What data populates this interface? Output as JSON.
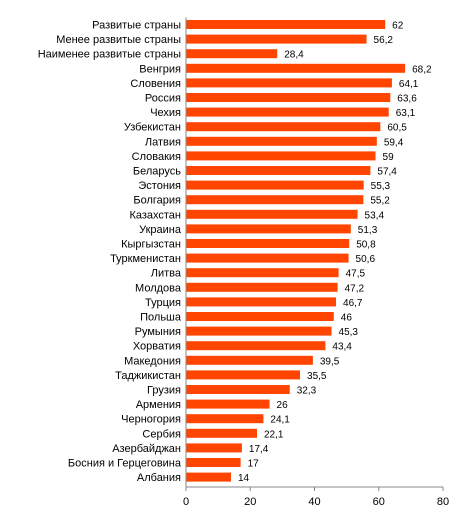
{
  "chart_data": {
    "type": "bar",
    "orientation": "horizontal",
    "categories": [
      "Развитые страны",
      "Менее развитые страны",
      "Наименее развитые страны",
      "Венгрия",
      "Словения",
      "Россия",
      "Чехия",
      "Узбекистан",
      "Латвия",
      "Словакия",
      "Беларусь",
      "Эстония",
      "Болгария",
      "Казахстан",
      "Украина",
      "Кыргызстан",
      "Туркменистан",
      "Литва",
      "Молдова",
      "Турция",
      "Польша",
      "Румыния",
      "Хорватия",
      "Македония",
      "Таджикистан",
      "Грузия",
      "Армения",
      "Черногория",
      "Сербия",
      "Азербайджан",
      "Босния и Герцеговина",
      "Албания"
    ],
    "values": [
      62,
      56.2,
      28.4,
      68.2,
      64.1,
      63.6,
      63.1,
      60.5,
      59.4,
      59,
      57.4,
      55.3,
      55.2,
      53.4,
      51.3,
      50.8,
      50.6,
      47.5,
      47.2,
      46.7,
      46,
      45.3,
      43.4,
      39.5,
      35.5,
      32.3,
      26,
      24.1,
      22.1,
      17.4,
      17,
      14
    ],
    "value_labels": [
      "62",
      "56,2",
      "28,4",
      "68,2",
      "64,1",
      "63,6",
      "63,1",
      "60,5",
      "59,4",
      "59",
      "57,4",
      "55,3",
      "55,2",
      "53,4",
      "51,3",
      "50,8",
      "50,6",
      "47,5",
      "47,2",
      "46,7",
      "46",
      "45,3",
      "43,4",
      "39,5",
      "35,5",
      "32,3",
      "26",
      "24,1",
      "22,1",
      "17,4",
      "17",
      "14"
    ],
    "xlim": [
      0,
      80
    ],
    "xticks": [
      "0",
      "20",
      "40",
      "60",
      "80"
    ],
    "title": "",
    "xlabel": "",
    "ylabel": "",
    "bar_color": "#ff4500",
    "grid": false
  }
}
